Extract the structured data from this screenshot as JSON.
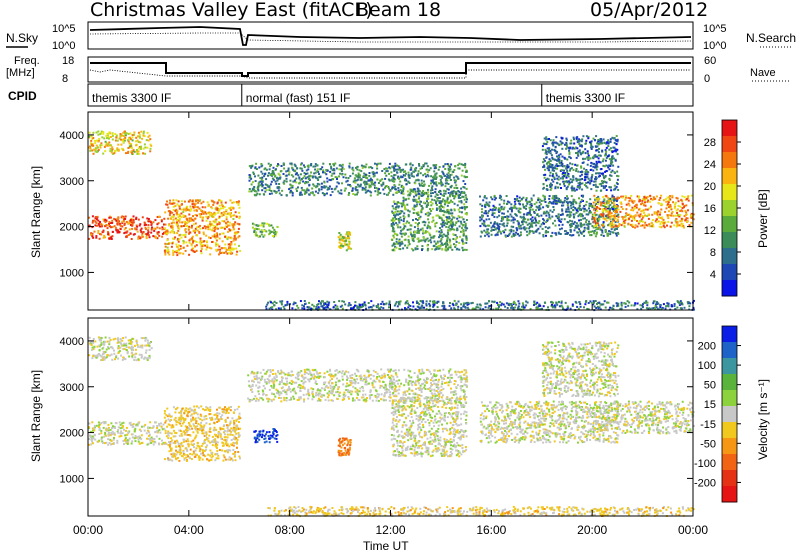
{
  "header": {
    "site": "Christmas Valley East (fitACF)",
    "beam": "Beam 18",
    "date": "05/Apr/2012"
  },
  "status_panels": {
    "nsky_label": "N.Sky",
    "nsearch_label": "N.Search",
    "noise_ticks": [
      "10^5",
      "10^0"
    ],
    "freq_label_line1": "Freq.",
    "freq_label_line2": "[MHz]",
    "freq_ticks": [
      "18",
      "8"
    ],
    "nave_label": "Nave",
    "nave_ticks": [
      "60",
      "0"
    ],
    "cpid_label": "CPID",
    "cpid_segments": [
      {
        "label": "themis 3300 IF",
        "start_hour": 0.0,
        "end_hour": 6.1
      },
      {
        "label": "normal (fast) 151 IF",
        "start_hour": 6.1,
        "end_hour": 18.0
      },
      {
        "label": "themis 3300 IF",
        "start_hour": 18.0,
        "end_hour": 24.0
      }
    ]
  },
  "colors": {
    "power_scale": [
      "#0a14e6",
      "#1e46b4",
      "#2d6e8c",
      "#3c8c5a",
      "#5aaa3c",
      "#9cd22d",
      "#e6e619",
      "#fab40f",
      "#f5780f",
      "#f04614",
      "#e61414"
    ],
    "velocity_scale": [
      "#0a1ee6",
      "#1e64c8",
      "#3c96a0",
      "#5ab43c",
      "#8cd23c",
      "#c8c8c8",
      "#f0c81e",
      "#f59614",
      "#f06414",
      "#e63214",
      "#e61414"
    ]
  },
  "chart_data": [
    {
      "type": "heatmap",
      "name": "power",
      "ylabel": "Slant Range [km]",
      "yticks": [
        "1000",
        "2000",
        "3000",
        "4000"
      ],
      "ylim": [
        180,
        4500
      ],
      "colorbar_label": "Power [dB]",
      "colorbar_ticks": [
        "4",
        "8",
        "12",
        "16",
        "20",
        "24",
        "28"
      ],
      "color_range": [
        0,
        30
      ],
      "scatter_bands": [
        {
          "t0": 0.0,
          "t1": 3.0,
          "r0": 1750,
          "r1": 2250,
          "value": 27
        },
        {
          "t0": 0.0,
          "t1": 2.5,
          "r0": 3600,
          "r1": 4100,
          "value": 19
        },
        {
          "t0": 3.0,
          "t1": 6.0,
          "r0": 1400,
          "r1": 2600,
          "value": 22
        },
        {
          "t0": 6.3,
          "t1": 15.0,
          "r0": 2700,
          "r1": 3400,
          "value": 8
        },
        {
          "t0": 6.5,
          "t1": 7.5,
          "r0": 1800,
          "r1": 2100,
          "value": 13
        },
        {
          "t0": 9.9,
          "t1": 10.4,
          "r0": 1500,
          "r1": 1900,
          "value": 17
        },
        {
          "t0": 12.0,
          "t1": 15.0,
          "r0": 1500,
          "r1": 2800,
          "value": 10
        },
        {
          "t0": 15.5,
          "t1": 21.0,
          "r0": 1800,
          "r1": 2700,
          "value": 7
        },
        {
          "t0": 18.0,
          "t1": 21.0,
          "r0": 2800,
          "r1": 4000,
          "value": 6
        },
        {
          "t0": 20.0,
          "t1": 24.0,
          "r0": 2000,
          "r1": 2700,
          "value": 22
        },
        {
          "t0": 7.0,
          "t1": 24.0,
          "r0": 200,
          "r1": 400,
          "value": 6
        }
      ]
    },
    {
      "type": "heatmap",
      "name": "velocity",
      "ylabel": "Slant Range [km]",
      "yticks": [
        "1000",
        "2000",
        "3000",
        "4000"
      ],
      "ylim": [
        180,
        4500
      ],
      "colorbar_label": "Velocity [m s⁻¹]",
      "colorbar_ticks": [
        "200",
        "100",
        "50",
        "15",
        "-15",
        "-50",
        "-100",
        "-200"
      ],
      "color_range": [
        -250,
        250
      ],
      "scatter_bands": [
        {
          "t0": 0.0,
          "t1": 3.0,
          "r0": 1750,
          "r1": 2250,
          "value": 0
        },
        {
          "t0": 0.0,
          "t1": 2.5,
          "r0": 3600,
          "r1": 4100,
          "value": 0
        },
        {
          "t0": 3.0,
          "t1": 6.0,
          "r0": 1400,
          "r1": 2600,
          "value": -45
        },
        {
          "t0": 6.3,
          "t1": 15.0,
          "r0": 2700,
          "r1": 3400,
          "value": 0
        },
        {
          "t0": 6.5,
          "t1": 7.5,
          "r0": 1800,
          "r1": 2100,
          "value": 220
        },
        {
          "t0": 9.9,
          "t1": 10.4,
          "r0": 1500,
          "r1": 1900,
          "value": -130
        },
        {
          "t0": 12.0,
          "t1": 15.0,
          "r0": 1500,
          "r1": 2800,
          "value": 0
        },
        {
          "t0": 15.5,
          "t1": 21.0,
          "r0": 1800,
          "r1": 2700,
          "value": 0
        },
        {
          "t0": 18.0,
          "t1": 21.0,
          "r0": 2800,
          "r1": 4000,
          "value": 0
        },
        {
          "t0": 20.0,
          "t1": 24.0,
          "r0": 2000,
          "r1": 2700,
          "value": 0
        },
        {
          "t0": 7.0,
          "t1": 24.0,
          "r0": 200,
          "r1": 400,
          "value": -40
        }
      ]
    }
  ],
  "time_axis": {
    "xlabel": "Time UT",
    "ticks": [
      "00:00",
      "04:00",
      "08:00",
      "12:00",
      "16:00",
      "20:00",
      "00:00"
    ],
    "range_hours": [
      0,
      24
    ]
  }
}
